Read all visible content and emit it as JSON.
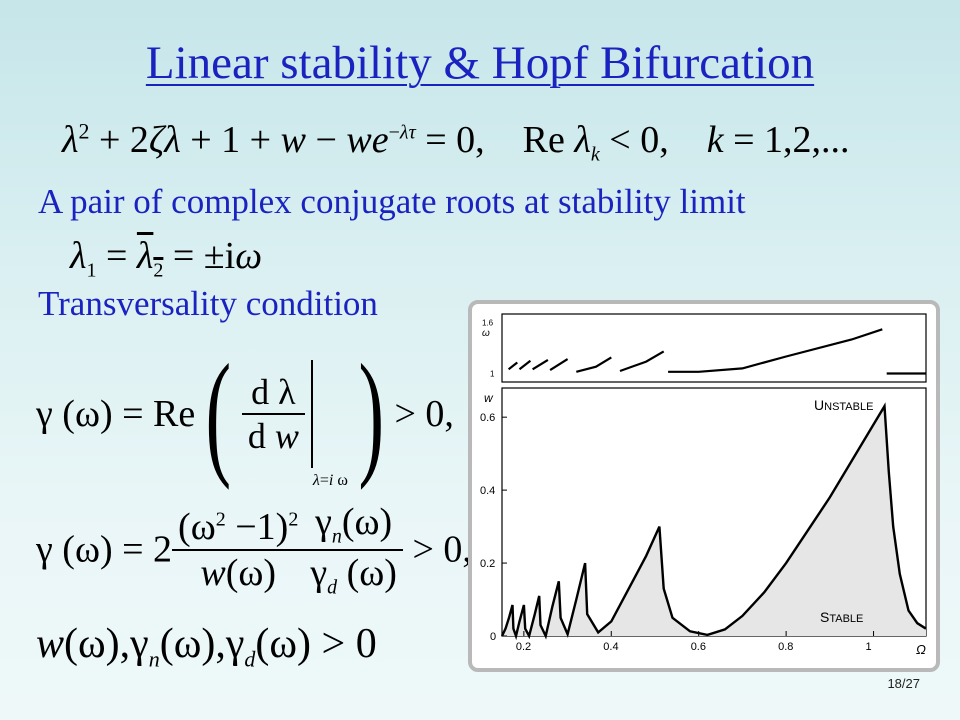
{
  "slide": {
    "title": "Linear stability & Hopf Bifurcation",
    "statement1": "A pair of complex conjugate roots at stability limit",
    "statement2": "Transversality condition",
    "page_number": "18/27"
  },
  "equations": {
    "char_eq": "λ² + 2ζλ + 1 + w − we^(−λτ) = 0,   Re λ_k < 0,   k = 1,2,...",
    "roots": "λ₁ = λ̄₂ = ±iω",
    "gamma_def": "γ(ω) = Re( dλ/dw |_{λ=iω} ) > 0,",
    "gamma_expr": "γ(ω) = 2 (ω² − 1)²/w(ω) · γ_n(ω)/γ_d(ω) > 0,",
    "positivity": "w(ω), γ_n(ω), γ_d(ω) > 0"
  },
  "chart_data": [
    {
      "type": "line",
      "ylabel": "ω",
      "yticks": [
        "1",
        "1.6"
      ],
      "ylim": [
        0.9,
        1.7
      ],
      "xlim": [
        0.15,
        1.12
      ],
      "series": [
        {
          "values": [
            [
              0.165,
              1.05
            ],
            [
              0.185,
              1.13
            ]
          ]
        },
        {
          "values": [
            [
              0.19,
              1.05
            ],
            [
              0.215,
              1.15
            ]
          ]
        },
        {
          "values": [
            [
              0.22,
              1.05
            ],
            [
              0.255,
              1.16
            ]
          ]
        },
        {
          "values": [
            [
              0.26,
              1.04
            ],
            [
              0.3,
              1.17
            ]
          ]
        },
        {
          "values": [
            [
              0.32,
              1.02
            ],
            [
              0.365,
              1.08
            ],
            [
              0.4,
              1.19
            ]
          ]
        },
        {
          "values": [
            [
              0.42,
              1.03
            ],
            [
              0.48,
              1.14
            ],
            [
              0.52,
              1.26
            ]
          ]
        },
        {
          "values": [
            [
              0.53,
              1.02
            ],
            [
              0.6,
              1.02
            ],
            [
              0.7,
              1.06
            ],
            [
              0.8,
              1.2
            ],
            [
              0.95,
              1.4
            ],
            [
              1.02,
              1.52
            ]
          ]
        },
        {
          "values": [
            [
              1.03,
              1.0
            ],
            [
              1.12,
              1.0
            ]
          ]
        }
      ]
    },
    {
      "type": "area",
      "xlabel": "Ω",
      "ylabel": "w",
      "xticks": [
        "0.2",
        "0.4",
        "0.6",
        "0.8",
        "1"
      ],
      "yticks": [
        "0",
        "0.2",
        "0.4",
        "0.6"
      ],
      "xlim": [
        0.15,
        1.12
      ],
      "ylim": [
        0,
        0.68
      ],
      "annotations": [
        "UNSTABLE",
        "STABLE"
      ],
      "series": [
        {
          "values": [
            [
              0.15,
              0.0
            ],
            [
              0.158,
              0.02
            ],
            [
              0.166,
              0.05
            ],
            [
              0.174,
              0.085
            ],
            [
              0.176,
              0.02
            ],
            [
              0.182,
              0.0
            ],
            [
              0.19,
              0.04
            ],
            [
              0.2,
              0.085
            ],
            [
              0.203,
              0.02
            ],
            [
              0.212,
              0.0
            ],
            [
              0.225,
              0.06
            ],
            [
              0.235,
              0.11
            ],
            [
              0.238,
              0.03
            ],
            [
              0.25,
              0.0
            ],
            [
              0.265,
              0.08
            ],
            [
              0.28,
              0.15
            ],
            [
              0.284,
              0.05
            ],
            [
              0.3,
              0.005
            ],
            [
              0.32,
              0.1
            ],
            [
              0.34,
              0.2
            ],
            [
              0.345,
              0.06
            ],
            [
              0.37,
              0.01
            ],
            [
              0.4,
              0.04
            ],
            [
              0.44,
              0.13
            ],
            [
              0.48,
              0.22
            ],
            [
              0.51,
              0.3
            ],
            [
              0.52,
              0.13
            ],
            [
              0.54,
              0.05
            ],
            [
              0.58,
              0.013
            ],
            [
              0.62,
              0.003
            ],
            [
              0.66,
              0.018
            ],
            [
              0.7,
              0.055
            ],
            [
              0.75,
              0.12
            ],
            [
              0.8,
              0.2
            ],
            [
              0.85,
              0.29
            ],
            [
              0.9,
              0.38
            ],
            [
              0.95,
              0.48
            ],
            [
              1.0,
              0.58
            ],
            [
              1.025,
              0.63
            ],
            [
              1.035,
              0.45
            ],
            [
              1.045,
              0.3
            ],
            [
              1.06,
              0.17
            ],
            [
              1.08,
              0.07
            ],
            [
              1.1,
              0.035
            ],
            [
              1.12,
              0.02
            ]
          ]
        }
      ]
    }
  ]
}
